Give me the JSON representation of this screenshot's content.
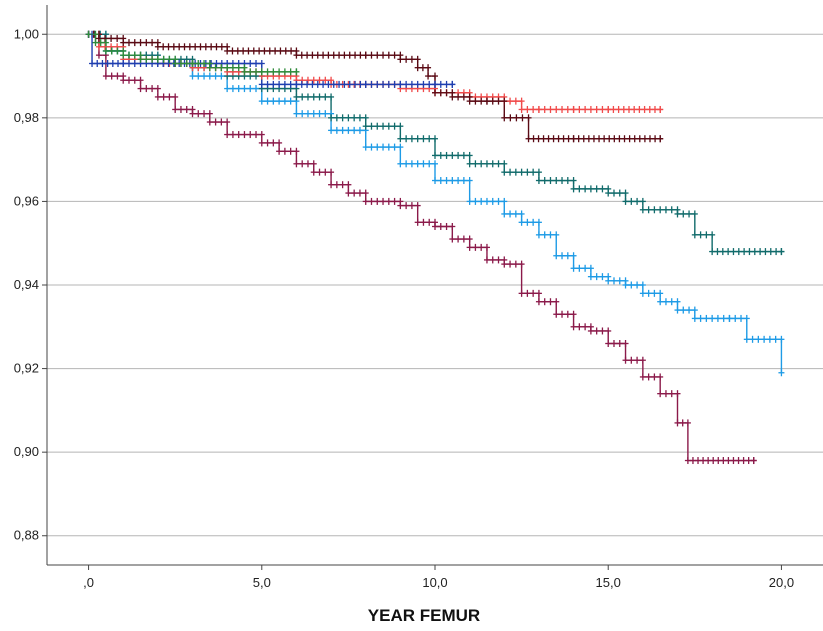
{
  "chart_data": {
    "type": "line",
    "xlabel": "YEAR FEMUR",
    "ylabel": "",
    "xlim": [
      -1.2,
      21.2
    ],
    "ylim": [
      0.873,
      1.007
    ],
    "x_ticks": [
      {
        "value": 0,
        "label": ",0"
      },
      {
        "value": 5,
        "label": "5,0"
      },
      {
        "value": 10,
        "label": "10,0"
      },
      {
        "value": 15,
        "label": "15,0"
      },
      {
        "value": 20,
        "label": "20,0"
      }
    ],
    "y_ticks": [
      {
        "value": 1.0,
        "label": "1,00"
      },
      {
        "value": 0.98,
        "label": "0,98"
      },
      {
        "value": 0.96,
        "label": "0,96"
      },
      {
        "value": 0.94,
        "label": "0,94"
      },
      {
        "value": 0.92,
        "label": "0,92"
      },
      {
        "value": 0.9,
        "label": "0,90"
      },
      {
        "value": 0.88,
        "label": "0,88"
      }
    ],
    "grid": "horizontal",
    "series": [
      {
        "color": "#8b1a4a",
        "x": [
          0,
          0.3,
          0.5,
          1.0,
          1.5,
          2.0,
          2.5,
          3.0,
          3.5,
          4.0,
          5.0,
          5.5,
          6.0,
          6.5,
          7.0,
          7.5,
          8.0,
          9.0,
          9.5,
          10.0,
          10.5,
          11.0,
          11.5,
          12.0,
          12.5,
          13.0,
          13.5,
          14.0,
          14.5,
          15.0,
          15.5,
          16.0,
          16.5,
          17.0,
          17.3,
          19.2
        ],
        "y": [
          1.0,
          0.995,
          0.99,
          0.989,
          0.987,
          0.985,
          0.982,
          0.981,
          0.979,
          0.976,
          0.974,
          0.972,
          0.969,
          0.967,
          0.964,
          0.962,
          0.96,
          0.959,
          0.955,
          0.954,
          0.951,
          0.949,
          0.946,
          0.945,
          0.938,
          0.936,
          0.933,
          0.93,
          0.929,
          0.926,
          0.922,
          0.918,
          0.914,
          0.907,
          0.898,
          0.898
        ]
      },
      {
        "color": "#1e9be6",
        "x": [
          0,
          0.5,
          1.0,
          2.0,
          3.0,
          4.0,
          5.0,
          6.0,
          7.0,
          8.0,
          9.0,
          10.0,
          11.0,
          12.0,
          12.5,
          13.0,
          13.5,
          14.0,
          14.5,
          15.0,
          15.5,
          16.0,
          16.5,
          17.0,
          17.5,
          18.5,
          19.0,
          20.0
        ],
        "y": [
          1.0,
          0.996,
          0.995,
          0.993,
          0.99,
          0.987,
          0.984,
          0.981,
          0.977,
          0.973,
          0.969,
          0.965,
          0.96,
          0.957,
          0.955,
          0.952,
          0.947,
          0.944,
          0.942,
          0.941,
          0.94,
          0.938,
          0.936,
          0.934,
          0.932,
          0.932,
          0.927,
          0.919
        ]
      },
      {
        "color": "#116b6b",
        "x": [
          0,
          0.5,
          1.0,
          2.0,
          3.0,
          4.0,
          5.0,
          6.0,
          7.0,
          8.0,
          9.0,
          10.0,
          11.0,
          12.0,
          13.0,
          14.0,
          15.0,
          15.5,
          16.0,
          17.0,
          17.5,
          18.0,
          20.0
        ],
        "y": [
          1.0,
          0.996,
          0.995,
          0.994,
          0.992,
          0.99,
          0.987,
          0.985,
          0.98,
          0.978,
          0.975,
          0.971,
          0.969,
          0.967,
          0.965,
          0.963,
          0.962,
          0.96,
          0.958,
          0.957,
          0.952,
          0.948,
          0.948
        ]
      },
      {
        "color": "#f04a4a",
        "x": [
          0,
          0.3,
          1.0,
          2.0,
          3.0,
          4.0,
          5.0,
          6.0,
          7.0,
          8.0,
          9.0,
          10.0,
          11.0,
          12.0,
          12.5,
          13.0,
          14.0,
          15.0,
          16.5
        ],
        "y": [
          1.0,
          0.997,
          0.994,
          0.993,
          0.992,
          0.991,
          0.99,
          0.989,
          0.988,
          0.988,
          0.987,
          0.986,
          0.985,
          0.984,
          0.982,
          0.982,
          0.982,
          0.982,
          0.982
        ]
      },
      {
        "color": "#5a0a14",
        "x": [
          0,
          0.3,
          1.0,
          2.0,
          4.0,
          6.0,
          8.0,
          9.0,
          9.5,
          9.8,
          10.0,
          10.5,
          11.0,
          11.5,
          12.0,
          12.7,
          14.0,
          16.5
        ],
        "y": [
          1.0,
          0.999,
          0.998,
          0.997,
          0.996,
          0.995,
          0.995,
          0.994,
          0.992,
          0.99,
          0.986,
          0.985,
          0.984,
          0.984,
          0.98,
          0.975,
          0.975,
          0.975
        ]
      },
      {
        "color": "#1f3fb0",
        "x": [
          0,
          0.1,
          1.0,
          2.0,
          4.0,
          5.0,
          6.0,
          8.0,
          9.0,
          10.0,
          10.5
        ],
        "y": [
          1.0,
          0.993,
          0.993,
          0.993,
          0.993,
          0.988,
          0.988,
          0.988,
          0.988,
          0.988,
          0.988
        ]
      },
      {
        "color": "#2e8b3a",
        "x": [
          0,
          0.2,
          0.5,
          1.0,
          1.5,
          2.0,
          2.5,
          3.0,
          3.5,
          4.0,
          4.5,
          5.0,
          6.0
        ],
        "y": [
          1.0,
          0.998,
          0.996,
          0.995,
          0.994,
          0.994,
          0.993,
          0.993,
          0.992,
          0.992,
          0.991,
          0.991,
          0.991
        ]
      }
    ]
  }
}
